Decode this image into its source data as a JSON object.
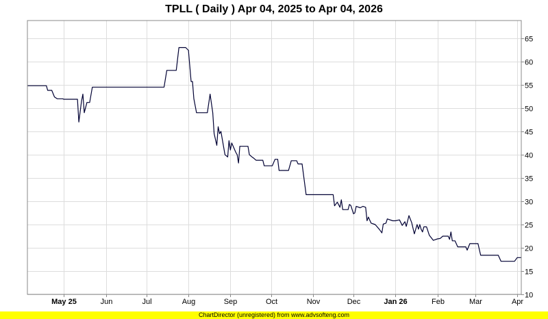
{
  "chart_data": {
    "type": "line",
    "title": "TPLL ( Daily ) Apr 04, 2025 to Apr 04, 2026",
    "xlabel": "",
    "ylabel": "",
    "xlim": [
      "2025-04-04",
      "2026-04-04"
    ],
    "ylim": [
      10,
      68.8
    ],
    "y_ticks": [
      10,
      15,
      20,
      25,
      30,
      35,
      40,
      45,
      50,
      55,
      60,
      65
    ],
    "y_axis_side": "right",
    "grid": true,
    "x_ticks": [
      {
        "date": "2025-05-01",
        "label": "May 25",
        "bold": true
      },
      {
        "date": "2025-06-01",
        "label": "Jun",
        "bold": false
      },
      {
        "date": "2025-07-01",
        "label": "Jul",
        "bold": false
      },
      {
        "date": "2025-08-01",
        "label": "Aug",
        "bold": false
      },
      {
        "date": "2025-09-01",
        "label": "Sep",
        "bold": false
      },
      {
        "date": "2025-10-01",
        "label": "Oct",
        "bold": false
      },
      {
        "date": "2025-11-01",
        "label": "Nov",
        "bold": false
      },
      {
        "date": "2025-12-01",
        "label": "Dec",
        "bold": false
      },
      {
        "date": "2026-01-01",
        "label": "Jan 26",
        "bold": true
      },
      {
        "date": "2026-02-01",
        "label": "Feb",
        "bold": false
      },
      {
        "date": "2026-03-01",
        "label": "Mar",
        "bold": false
      },
      {
        "date": "2026-04-01",
        "label": "Apr",
        "bold": false
      }
    ],
    "line_color": "#000033",
    "series": [
      {
        "points": [
          [
            "2025-04-04",
            54.8
          ],
          [
            "2025-04-18",
            54.8
          ],
          [
            "2025-04-19",
            53.8
          ],
          [
            "2025-04-22",
            53.8
          ],
          [
            "2025-04-24",
            52.4
          ],
          [
            "2025-04-26",
            52.0
          ],
          [
            "2025-04-30",
            52.0
          ],
          [
            "2025-05-01",
            51.9
          ],
          [
            "2025-05-11",
            51.9
          ],
          [
            "2025-05-12",
            47.0
          ],
          [
            "2025-05-14",
            51.5
          ],
          [
            "2025-05-15",
            53.0
          ],
          [
            "2025-05-16",
            49.0
          ],
          [
            "2025-05-18",
            51.2
          ],
          [
            "2025-05-20",
            51.2
          ],
          [
            "2025-05-22",
            54.5
          ],
          [
            "2025-06-01",
            54.5
          ],
          [
            "2025-07-14",
            54.5
          ],
          [
            "2025-07-16",
            58.1
          ],
          [
            "2025-07-23",
            58.1
          ],
          [
            "2025-07-25",
            63.0
          ],
          [
            "2025-07-30",
            63.0
          ],
          [
            "2025-08-01",
            62.4
          ],
          [
            "2025-08-03",
            55.7
          ],
          [
            "2025-08-04",
            55.7
          ],
          [
            "2025-08-05",
            52.0
          ],
          [
            "2025-08-07",
            49.0
          ],
          [
            "2025-08-15",
            49.0
          ],
          [
            "2025-08-17",
            53.0
          ],
          [
            "2025-08-19",
            49.0
          ],
          [
            "2025-08-20",
            44.5
          ],
          [
            "2025-08-22",
            42.0
          ],
          [
            "2025-08-23",
            46.0
          ],
          [
            "2025-08-24",
            44.5
          ],
          [
            "2025-08-25",
            45.0
          ],
          [
            "2025-08-28",
            40.0
          ],
          [
            "2025-08-30",
            39.5
          ],
          [
            "2025-08-31",
            43.0
          ],
          [
            "2025-09-01",
            41.0
          ],
          [
            "2025-09-02",
            42.5
          ],
          [
            "2025-09-05",
            40.5
          ],
          [
            "2025-09-06",
            40.0
          ],
          [
            "2025-09-07",
            38.2
          ],
          [
            "2025-09-08",
            41.8
          ],
          [
            "2025-09-14",
            41.8
          ],
          [
            "2025-09-15",
            40.0
          ],
          [
            "2025-09-17",
            39.5
          ],
          [
            "2025-09-18",
            39.3
          ],
          [
            "2025-09-20",
            38.8
          ],
          [
            "2025-09-25",
            38.8
          ],
          [
            "2025-09-26",
            37.6
          ],
          [
            "2025-10-02",
            37.6
          ],
          [
            "2025-10-04",
            39.0
          ],
          [
            "2025-10-06",
            39.0
          ],
          [
            "2025-10-07",
            36.6
          ],
          [
            "2025-10-14",
            36.6
          ],
          [
            "2025-10-16",
            38.7
          ],
          [
            "2025-10-20",
            38.7
          ],
          [
            "2025-10-21",
            38.0
          ],
          [
            "2025-10-24",
            38.0
          ],
          [
            "2025-10-27",
            31.4
          ],
          [
            "2025-11-16",
            31.4
          ],
          [
            "2025-11-17",
            29.0
          ],
          [
            "2025-11-19",
            29.8
          ],
          [
            "2025-11-21",
            28.7
          ],
          [
            "2025-11-22",
            30.3
          ],
          [
            "2025-11-23",
            28.2
          ],
          [
            "2025-11-27",
            28.2
          ],
          [
            "2025-11-28",
            29.3
          ],
          [
            "2025-11-29",
            29.1
          ],
          [
            "2025-12-01",
            27.3
          ],
          [
            "2025-12-02",
            27.5
          ],
          [
            "2025-12-03",
            28.9
          ],
          [
            "2025-12-06",
            28.6
          ],
          [
            "2025-12-08",
            28.9
          ],
          [
            "2025-12-10",
            28.7
          ],
          [
            "2025-12-11",
            25.8
          ],
          [
            "2025-12-12",
            26.6
          ],
          [
            "2025-12-14",
            25.3
          ],
          [
            "2025-12-17",
            25.0
          ],
          [
            "2025-12-20",
            24.0
          ],
          [
            "2025-12-22",
            23.2
          ],
          [
            "2025-12-23",
            25.1
          ],
          [
            "2025-12-25",
            25.3
          ],
          [
            "2025-12-26",
            26.2
          ],
          [
            "2025-12-30",
            25.8
          ],
          [
            "2026-01-01",
            25.8
          ],
          [
            "2026-01-04",
            26.0
          ],
          [
            "2026-01-06",
            24.8
          ],
          [
            "2026-01-08",
            25.6
          ],
          [
            "2026-01-09",
            24.6
          ],
          [
            "2026-01-11",
            26.9
          ],
          [
            "2026-01-13",
            25.4
          ],
          [
            "2026-01-15",
            23.0
          ],
          [
            "2026-01-17",
            25.0
          ],
          [
            "2026-01-18",
            24.0
          ],
          [
            "2026-01-19",
            25.0
          ],
          [
            "2026-01-20",
            24.0
          ],
          [
            "2026-01-21",
            23.4
          ],
          [
            "2026-01-22",
            24.5
          ],
          [
            "2026-01-24",
            24.5
          ],
          [
            "2026-01-26",
            22.7
          ],
          [
            "2026-01-29",
            21.6
          ],
          [
            "2026-02-01",
            21.9
          ],
          [
            "2026-02-03",
            22.0
          ],
          [
            "2026-02-05",
            22.5
          ],
          [
            "2026-02-09",
            22.5
          ],
          [
            "2026-02-10",
            21.8
          ],
          [
            "2026-02-11",
            23.4
          ],
          [
            "2026-02-12",
            21.5
          ],
          [
            "2026-02-14",
            21.5
          ],
          [
            "2026-02-16",
            20.2
          ],
          [
            "2026-02-22",
            20.2
          ],
          [
            "2026-02-23",
            19.5
          ],
          [
            "2026-02-25",
            20.9
          ],
          [
            "2026-03-03",
            20.9
          ],
          [
            "2026-03-05",
            18.4
          ],
          [
            "2026-03-18",
            18.4
          ],
          [
            "2026-03-20",
            17.1
          ],
          [
            "2026-03-30",
            17.1
          ],
          [
            "2026-04-01",
            17.9
          ],
          [
            "2026-04-04",
            17.9
          ]
        ]
      }
    ]
  },
  "footer": {
    "text": "ChartDirector (unregistered) from www.advsofteng.com"
  }
}
